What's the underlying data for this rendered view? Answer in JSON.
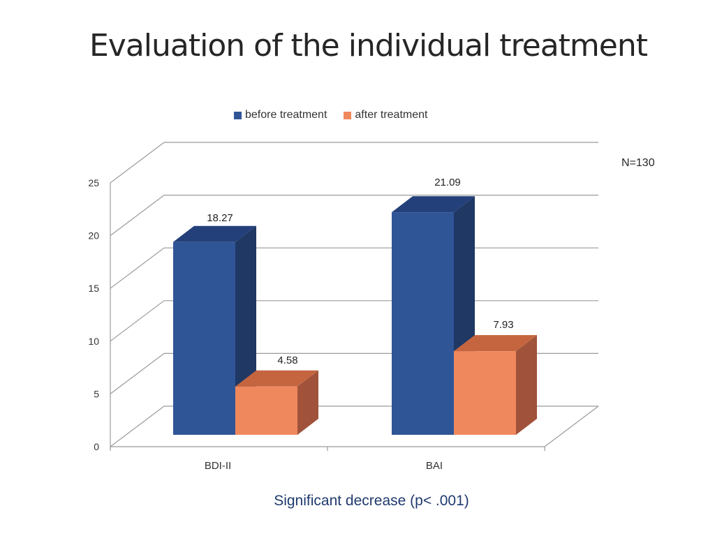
{
  "slide": {
    "title": "Evaluation of the individual treatment",
    "sample_size": "N=130",
    "footer": "Significant decrease (p< .001)"
  },
  "chart_data": {
    "type": "bar",
    "title": "Evaluation of the individual treatment",
    "categories": [
      "BDI-II",
      "BAI"
    ],
    "series": [
      {
        "name": "before treatment",
        "values": [
          18.27,
          21.09
        ],
        "color": "#2f5597",
        "top_color": "#24407a",
        "side_color": "#1f3864"
      },
      {
        "name": "after treatment",
        "values": [
          4.58,
          7.93
        ],
        "color": "#f0885e",
        "top_color": "#c5653f",
        "side_color": "#a0533a"
      }
    ],
    "data_labels": [
      [
        "18.27",
        "21.09"
      ],
      [
        "4.58",
        "7.93"
      ]
    ],
    "yticks": [
      "0",
      "5",
      "10",
      "15",
      "20",
      "25"
    ],
    "ylim": [
      0,
      25
    ],
    "grid": true,
    "legend_position": "top",
    "xlabel": "",
    "ylabel": ""
  }
}
